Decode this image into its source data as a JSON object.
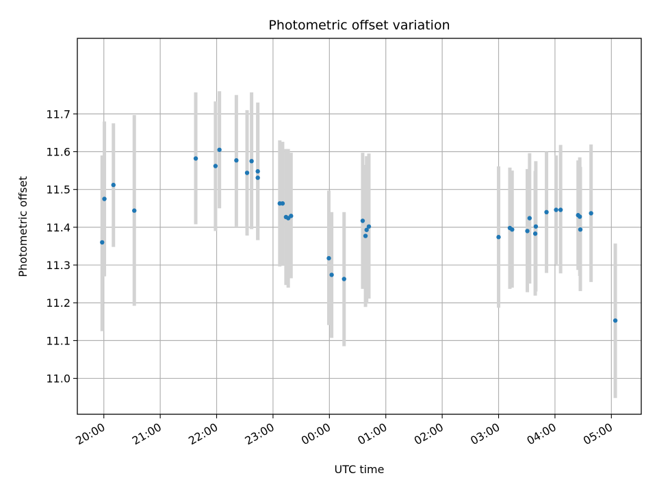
{
  "chart_data": {
    "type": "scatter",
    "title": "Photometric offset variation",
    "xlabel": "UTC time",
    "ylabel": "Photometric offset",
    "x_axis": {
      "unit": "hours since 20:00 UTC (times after midnight are the next day)",
      "range": [
        -0.47,
        9.53
      ],
      "ticks": [
        {
          "value": 0,
          "label": "20:00"
        },
        {
          "value": 1,
          "label": "21:00"
        },
        {
          "value": 2,
          "label": "22:00"
        },
        {
          "value": 3,
          "label": "23:00"
        },
        {
          "value": 4,
          "label": "00:00"
        },
        {
          "value": 5,
          "label": "01:00"
        },
        {
          "value": 6,
          "label": "02:00"
        },
        {
          "value": 7,
          "label": "03:00"
        },
        {
          "value": 8,
          "label": "04:00"
        },
        {
          "value": 9,
          "label": "05:00"
        }
      ],
      "tick_label_rotation": 30
    },
    "y_axis": {
      "range": [
        10.905,
        11.9
      ],
      "ticks": [
        {
          "value": 11.0,
          "label": "11.0"
        },
        {
          "value": 11.1,
          "label": "11.1"
        },
        {
          "value": 11.2,
          "label": "11.2"
        },
        {
          "value": 11.3,
          "label": "11.3"
        },
        {
          "value": 11.4,
          "label": "11.4"
        },
        {
          "value": 11.5,
          "label": "11.5"
        },
        {
          "value": 11.6,
          "label": "11.6"
        },
        {
          "value": 11.7,
          "label": "11.7"
        }
      ]
    },
    "grid": true,
    "colors": {
      "point": "#1f77b4",
      "errorbar": "#d3d3d3",
      "grid": "#b0b0b0"
    },
    "points": [
      {
        "x": -0.03,
        "y": 11.36,
        "lo": 11.125,
        "hi": 11.59
      },
      {
        "x": 0.01,
        "y": 11.475,
        "lo": 11.27,
        "hi": 11.68
      },
      {
        "x": 0.17,
        "y": 11.512,
        "lo": 11.348,
        "hi": 11.675
      },
      {
        "x": 0.54,
        "y": 11.444,
        "lo": 11.192,
        "hi": 11.697
      },
      {
        "x": 1.63,
        "y": 11.582,
        "lo": 11.408,
        "hi": 11.757
      },
      {
        "x": 1.98,
        "y": 11.562,
        "lo": 11.39,
        "hi": 11.733
      },
      {
        "x": 2.05,
        "y": 11.605,
        "lo": 11.45,
        "hi": 11.76
      },
      {
        "x": 2.35,
        "y": 11.577,
        "lo": 11.402,
        "hi": 11.75
      },
      {
        "x": 2.54,
        "y": 11.544,
        "lo": 11.378,
        "hi": 11.71
      },
      {
        "x": 2.62,
        "y": 11.575,
        "lo": 11.395,
        "hi": 11.757
      },
      {
        "x": 2.73,
        "y": 11.548,
        "lo": 11.366,
        "hi": 11.73
      },
      {
        "x": 2.73,
        "y": 11.531,
        "lo": 11.366,
        "hi": 11.696
      },
      {
        "x": 3.12,
        "y": 11.463,
        "lo": 11.296,
        "hi": 11.63
      },
      {
        "x": 3.17,
        "y": 11.463,
        "lo": 11.3,
        "hi": 11.626
      },
      {
        "x": 3.23,
        "y": 11.427,
        "lo": 11.247,
        "hi": 11.607
      },
      {
        "x": 3.27,
        "y": 11.424,
        "lo": 11.24,
        "hi": 11.607
      },
      {
        "x": 3.32,
        "y": 11.43,
        "lo": 11.265,
        "hi": 11.597
      },
      {
        "x": 3.99,
        "y": 11.318,
        "lo": 11.141,
        "hi": 11.497
      },
      {
        "x": 4.04,
        "y": 11.274,
        "lo": 11.107,
        "hi": 11.44
      },
      {
        "x": 4.26,
        "y": 11.263,
        "lo": 11.085,
        "hi": 11.44
      },
      {
        "x": 4.59,
        "y": 11.417,
        "lo": 11.237,
        "hi": 11.597
      },
      {
        "x": 4.64,
        "y": 11.377,
        "lo": 11.189,
        "hi": 11.565
      },
      {
        "x": 4.66,
        "y": 11.393,
        "lo": 11.198,
        "hi": 11.588
      },
      {
        "x": 4.7,
        "y": 11.402,
        "lo": 11.211,
        "hi": 11.595
      },
      {
        "x": 7.0,
        "y": 11.374,
        "lo": 11.187,
        "hi": 11.561
      },
      {
        "x": 7.2,
        "y": 11.398,
        "lo": 11.237,
        "hi": 11.558
      },
      {
        "x": 7.24,
        "y": 11.394,
        "lo": 11.24,
        "hi": 11.55
      },
      {
        "x": 7.51,
        "y": 11.39,
        "lo": 11.228,
        "hi": 11.554
      },
      {
        "x": 7.55,
        "y": 11.424,
        "lo": 11.251,
        "hi": 11.596
      },
      {
        "x": 7.65,
        "y": 11.383,
        "lo": 11.219,
        "hi": 11.549
      },
      {
        "x": 7.66,
        "y": 11.402,
        "lo": 11.23,
        "hi": 11.575
      },
      {
        "x": 7.85,
        "y": 11.44,
        "lo": 11.279,
        "hi": 11.6
      },
      {
        "x": 8.02,
        "y": 11.446,
        "lo": 11.302,
        "hi": 11.59
      },
      {
        "x": 8.1,
        "y": 11.446,
        "lo": 11.278,
        "hi": 11.618
      },
      {
        "x": 8.41,
        "y": 11.432,
        "lo": 11.287,
        "hi": 11.577
      },
      {
        "x": 8.44,
        "y": 11.428,
        "lo": 11.271,
        "hi": 11.585
      },
      {
        "x": 8.45,
        "y": 11.394,
        "lo": 11.231,
        "hi": 11.56
      },
      {
        "x": 8.64,
        "y": 11.437,
        "lo": 11.255,
        "hi": 11.619
      },
      {
        "x": 9.07,
        "y": 11.153,
        "lo": 10.948,
        "hi": 11.357
      }
    ]
  }
}
